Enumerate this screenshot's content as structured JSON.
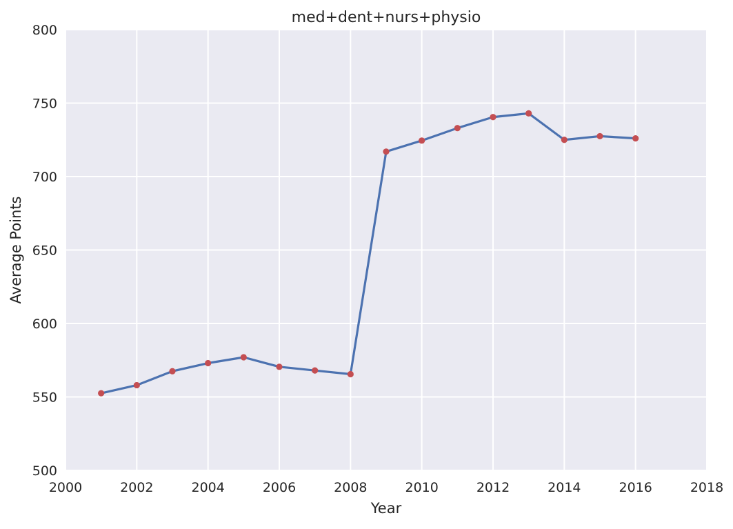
{
  "chart_data": {
    "type": "line",
    "title": "med+dent+nurs+physio",
    "xlabel": "Year",
    "ylabel": "Average Points",
    "xlim": [
      2000,
      2018
    ],
    "ylim": [
      500,
      800
    ],
    "x_ticks": [
      2000,
      2002,
      2004,
      2006,
      2008,
      2010,
      2012,
      2014,
      2016,
      2018
    ],
    "y_ticks": [
      500,
      550,
      600,
      650,
      700,
      750,
      800
    ],
    "grid": true,
    "x": [
      2001,
      2002,
      2003,
      2004,
      2005,
      2006,
      2007,
      2008,
      2009,
      2010,
      2011,
      2012,
      2013,
      2014,
      2015,
      2016
    ],
    "series": [
      {
        "values": [
          552.5,
          558,
          567.5,
          573,
          577,
          570.5,
          568,
          565.5,
          717,
          724.5,
          733,
          740.5,
          743,
          725,
          727.5,
          726
        ],
        "line_color": "#4c72b0",
        "marker_color": "#c44e52"
      }
    ],
    "colors": {
      "background": "#eaeaf2",
      "grid": "#ffffff"
    }
  }
}
